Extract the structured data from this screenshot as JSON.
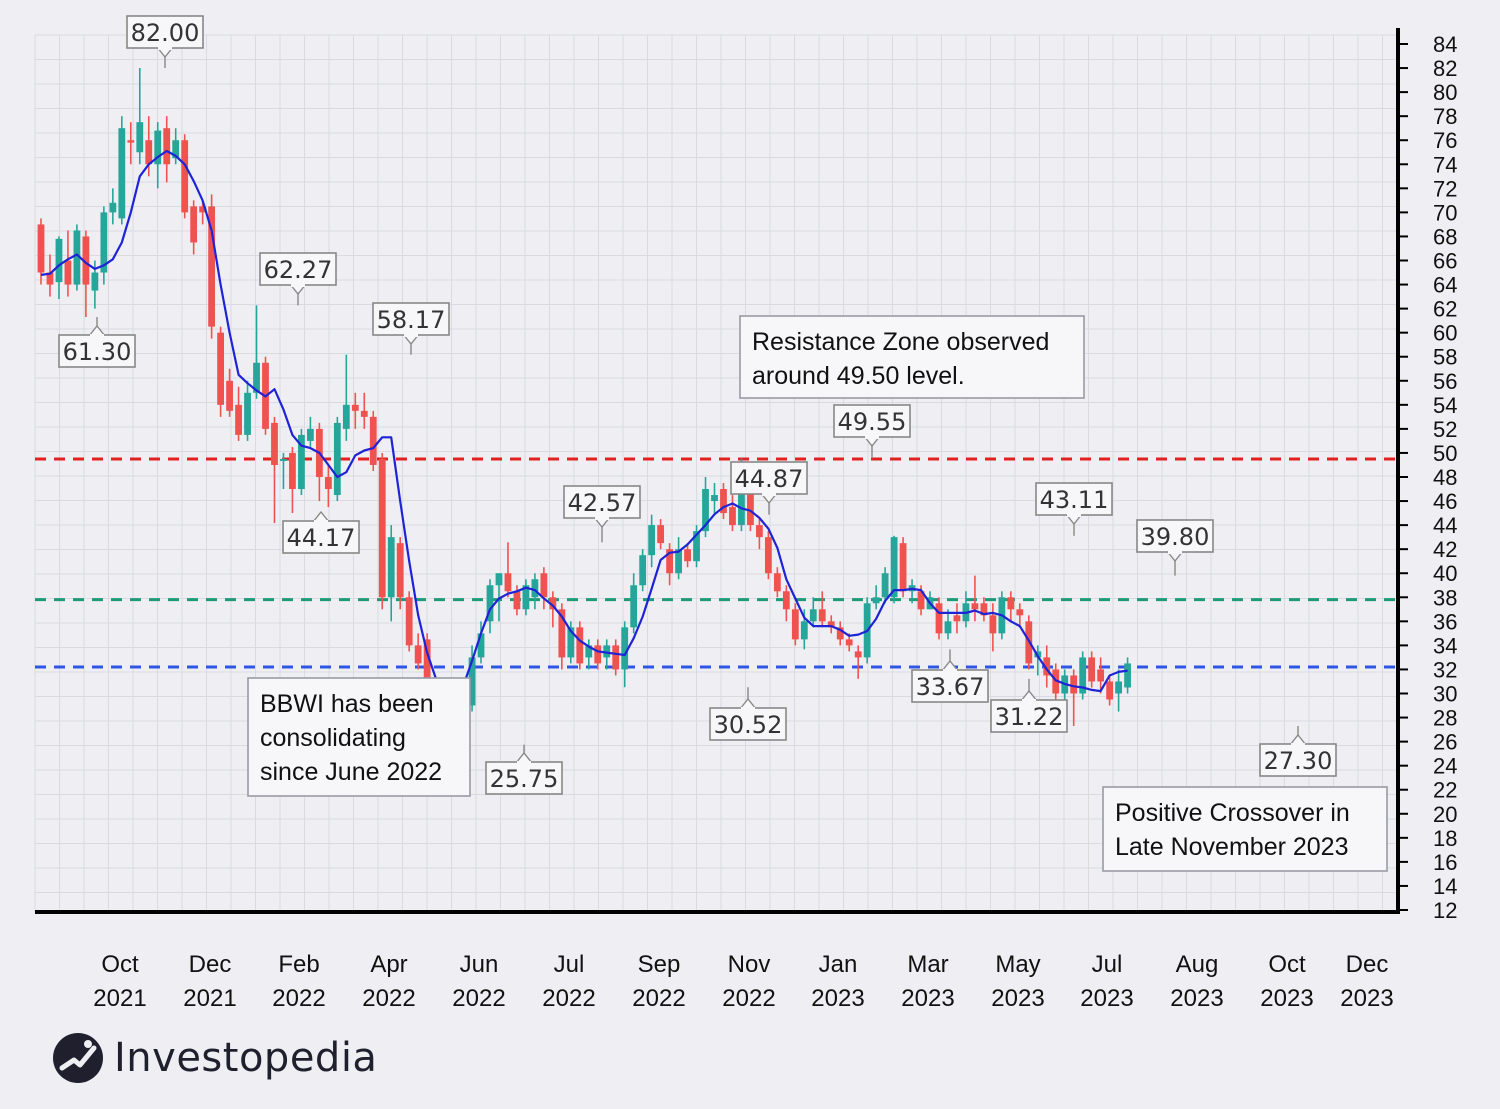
{
  "brand": {
    "name": "Investopedia"
  },
  "colors": {
    "bullish": "#26a69a",
    "bearish": "#ef5350",
    "moving_average": "#1f23d6",
    "resistance_line": "#e12020",
    "green_line": "#1e9a78",
    "blue_line": "#2f55e6",
    "background": "#efeff3",
    "grid": "#dadae3"
  },
  "chart_data": {
    "type": "candlestick",
    "ticker": "BBWI",
    "y_axis": {
      "position": "right",
      "ticks": [
        "12",
        "14",
        "16",
        "18",
        "20",
        "22",
        "24",
        "26",
        "28",
        "30",
        "32",
        "34",
        "36",
        "38",
        "40",
        "42",
        "44",
        "46",
        "48",
        "50",
        "52",
        "54",
        "56",
        "58",
        "60",
        "62",
        "64",
        "66",
        "68",
        "70",
        "72",
        "74",
        "76",
        "78",
        "80",
        "82",
        "84"
      ],
      "ylim": [
        12,
        84
      ]
    },
    "x_axis": {
      "ticks": [
        {
          "month": "Oct",
          "year": "2021"
        },
        {
          "month": "Dec",
          "year": "2021"
        },
        {
          "month": "Feb",
          "year": "2022"
        },
        {
          "month": "Apr",
          "year": "2022"
        },
        {
          "month": "Jun",
          "year": "2022"
        },
        {
          "month": "Jul",
          "year": "2022"
        },
        {
          "month": "Sep",
          "year": "2022"
        },
        {
          "month": "Nov",
          "year": "2022"
        },
        {
          "month": "Jan",
          "year": "2023"
        },
        {
          "month": "Mar",
          "year": "2023"
        },
        {
          "month": "May",
          "year": "2023"
        },
        {
          "month": "Jul",
          "year": "2023"
        },
        {
          "month": "Aug",
          "year": "2023"
        },
        {
          "month": "Oct",
          "year": "2023"
        },
        {
          "month": "Dec",
          "year": "2023"
        }
      ]
    },
    "grid": true,
    "horizontal_lines": [
      {
        "y": 49.5,
        "style": "dashed",
        "color": "red"
      },
      {
        "y": 37.8,
        "style": "dashed",
        "color": "green"
      },
      {
        "y": 32.2,
        "style": "dashed",
        "color": "blue"
      }
    ],
    "price_labels": [
      {
        "text": "82.00",
        "value": 82.0,
        "pos": "above"
      },
      {
        "text": "61.30",
        "value": 61.3,
        "pos": "below"
      },
      {
        "text": "62.27",
        "value": 62.27,
        "pos": "above"
      },
      {
        "text": "58.17",
        "value": 58.17,
        "pos": "above"
      },
      {
        "text": "44.17",
        "value": 44.17,
        "pos": "below"
      },
      {
        "text": "42.57",
        "value": 42.57,
        "pos": "above"
      },
      {
        "text": "25.75",
        "value": 25.75,
        "pos": "below"
      },
      {
        "text": "44.87",
        "value": 44.87,
        "pos": "above"
      },
      {
        "text": "30.52",
        "value": 30.52,
        "pos": "below"
      },
      {
        "text": "49.55",
        "value": 49.55,
        "pos": "above"
      },
      {
        "text": "33.67",
        "value": 33.67,
        "pos": "below"
      },
      {
        "text": "31.22",
        "value": 31.22,
        "pos": "below"
      },
      {
        "text": "43.11",
        "value": 43.11,
        "pos": "above"
      },
      {
        "text": "39.80",
        "value": 39.8,
        "pos": "above"
      },
      {
        "text": "27.30",
        "value": 27.3,
        "pos": "below"
      }
    ],
    "annotations": [
      {
        "lines": [
          "Resistance Zone observed",
          "around 49.50 level."
        ]
      },
      {
        "lines": [
          "BBWI has been",
          "consolidating",
          "since June 2022"
        ]
      },
      {
        "lines": [
          "Positive Crossover in",
          "Late November 2023"
        ]
      }
    ],
    "candles": [
      [
        69.0,
        65.0,
        69.5,
        64.0
      ],
      [
        65.0,
        64.0,
        66.5,
        63.0
      ],
      [
        64.2,
        67.8,
        68.0,
        62.8
      ],
      [
        66.0,
        64.0,
        68.5,
        63.0
      ],
      [
        64.0,
        68.5,
        69.0,
        63.5
      ],
      [
        68.0,
        64.0,
        68.5,
        61.3
      ],
      [
        63.5,
        65.0,
        66.0,
        62.0
      ],
      [
        65.0,
        70.0,
        70.5,
        64.0
      ],
      [
        70.0,
        70.8,
        72.0,
        69.0
      ],
      [
        69.5,
        77.0,
        78.0,
        69.0
      ],
      [
        76.0,
        75.8,
        77.5,
        74.0
      ],
      [
        75.0,
        77.5,
        82.0,
        74.0
      ],
      [
        76.0,
        74.0,
        78.0,
        73.0
      ],
      [
        74.0,
        76.8,
        77.5,
        72.0
      ],
      [
        77.0,
        74.0,
        78.0,
        72.5
      ],
      [
        74.5,
        76.0,
        77.0,
        74.0
      ],
      [
        76.0,
        70.0,
        76.5,
        69.5
      ],
      [
        70.5,
        67.5,
        71.0,
        66.5
      ],
      [
        70.5,
        70.0,
        71.0,
        69.0
      ],
      [
        70.5,
        60.5,
        71.5,
        59.5
      ],
      [
        60.0,
        54.0,
        60.5,
        53.0
      ],
      [
        56.0,
        53.5,
        57.0,
        53.0
      ],
      [
        54.0,
        51.5,
        55.5,
        51.0
      ],
      [
        51.5,
        55.0,
        56.0,
        51.0
      ],
      [
        55.0,
        57.5,
        62.27,
        54.5
      ],
      [
        57.5,
        52.0,
        58.0,
        51.5
      ],
      [
        52.5,
        49.0,
        53.0,
        44.17
      ],
      [
        49.5,
        49.5,
        50.0,
        47.0
      ],
      [
        50.0,
        47.0,
        50.5,
        45.0
      ],
      [
        47.0,
        51.5,
        52.0,
        46.5
      ],
      [
        51.0,
        52.0,
        53.0,
        50.5
      ],
      [
        52.0,
        48.0,
        52.5,
        46.0
      ],
      [
        48.0,
        47.0,
        49.0,
        45.5
      ],
      [
        46.5,
        52.5,
        53.0,
        46.0
      ],
      [
        52.0,
        54.0,
        58.17,
        51.0
      ],
      [
        54.0,
        53.5,
        55.0,
        52.0
      ],
      [
        53.5,
        53.0,
        55.0,
        52.0
      ],
      [
        53.0,
        49.0,
        53.5,
        48.5
      ],
      [
        49.5,
        38.0,
        50.0,
        37.0
      ],
      [
        38.0,
        43.0,
        44.0,
        36.0
      ],
      [
        42.5,
        38.0,
        43.0,
        37.0
      ],
      [
        38.0,
        34.0,
        38.5,
        33.5
      ],
      [
        34.0,
        32.5,
        35.0,
        32.0
      ],
      [
        34.5,
        30.0,
        35.0,
        29.0
      ],
      [
        30.0,
        27.5,
        30.5,
        25.75
      ],
      [
        28.0,
        28.5,
        29.0,
        27.0
      ],
      [
        28.0,
        28.2,
        29.0,
        27.0
      ],
      [
        27.5,
        30.0,
        31.0,
        27.0
      ],
      [
        29.0,
        33.0,
        34.0,
        28.5
      ],
      [
        33.0,
        35.0,
        36.0,
        32.5
      ],
      [
        36.0,
        39.0,
        39.5,
        35.0
      ],
      [
        39.0,
        40.0,
        40.0,
        36.0
      ],
      [
        40.0,
        38.5,
        42.57,
        38.0
      ],
      [
        38.5,
        37.0,
        39.0,
        36.5
      ],
      [
        37.0,
        39.0,
        39.5,
        36.5
      ],
      [
        38.0,
        39.5,
        40.0,
        37.0
      ],
      [
        40.0,
        38.0,
        40.5,
        37.0
      ],
      [
        38.0,
        37.0,
        38.5,
        35.5
      ],
      [
        37.0,
        33.0,
        37.5,
        32.0
      ],
      [
        33.0,
        35.5,
        36.0,
        32.5
      ],
      [
        35.5,
        32.5,
        36.0,
        32.0
      ],
      [
        33.0,
        34.0,
        34.5,
        32.0
      ],
      [
        34.0,
        32.5,
        34.5,
        32.0
      ],
      [
        33.0,
        34.0,
        34.5,
        32.0
      ],
      [
        34.0,
        32.0,
        34.5,
        31.5
      ],
      [
        32.0,
        35.5,
        36.0,
        30.52
      ],
      [
        35.5,
        39.0,
        40.0,
        35.0
      ],
      [
        39.0,
        41.5,
        42.0,
        38.5
      ],
      [
        41.5,
        44.0,
        44.87,
        40.5
      ],
      [
        44.0,
        42.5,
        44.5,
        42.0
      ],
      [
        42.0,
        40.0,
        42.5,
        39.0
      ],
      [
        40.0,
        42.0,
        43.0,
        39.5
      ],
      [
        42.0,
        41.0,
        42.5,
        40.5
      ],
      [
        41.0,
        43.5,
        44.0,
        40.5
      ],
      [
        43.5,
        47.0,
        48.0,
        43.0
      ],
      [
        46.0,
        46.5,
        47.5,
        45.0
      ],
      [
        47.0,
        45.0,
        47.5,
        44.5
      ],
      [
        45.5,
        44.0,
        46.5,
        43.5
      ],
      [
        44.0,
        47.0,
        49.55,
        43.5
      ],
      [
        47.0,
        44.0,
        47.5,
        43.5
      ],
      [
        44.0,
        43.0,
        44.5,
        42.0
      ],
      [
        43.0,
        40.0,
        43.5,
        39.5
      ],
      [
        40.0,
        38.5,
        40.5,
        38.0
      ],
      [
        38.5,
        37.0,
        39.0,
        36.0
      ],
      [
        37.0,
        34.5,
        37.5,
        34.0
      ],
      [
        34.5,
        36.0,
        37.0,
        33.67
      ],
      [
        36.0,
        37.0,
        38.0,
        35.5
      ],
      [
        37.0,
        36.0,
        38.5,
        35.5
      ],
      [
        36.0,
        35.5,
        36.5,
        35.0
      ],
      [
        35.5,
        34.5,
        36.0,
        34.0
      ],
      [
        34.5,
        34.0,
        35.0,
        33.5
      ],
      [
        33.5,
        33.0,
        34.0,
        31.22
      ],
      [
        33.0,
        37.5,
        38.0,
        32.5
      ],
      [
        37.5,
        38.0,
        39.0,
        37.0
      ],
      [
        38.0,
        40.0,
        40.5,
        37.5
      ],
      [
        38.0,
        43.0,
        43.11,
        37.5
      ],
      [
        42.5,
        38.5,
        43.0,
        38.0
      ],
      [
        38.5,
        39.0,
        39.5,
        37.5
      ],
      [
        38.5,
        37.0,
        39.0,
        36.5
      ],
      [
        37.0,
        38.0,
        38.5,
        37.0
      ],
      [
        37.5,
        35.0,
        38.0,
        34.5
      ],
      [
        35.0,
        36.0,
        37.0,
        34.5
      ],
      [
        36.5,
        36.0,
        37.5,
        35.0
      ],
      [
        36.0,
        37.5,
        38.5,
        35.5
      ],
      [
        37.5,
        37.0,
        39.8,
        36.0
      ],
      [
        37.5,
        36.5,
        38.0,
        36.0
      ],
      [
        36.5,
        35.0,
        37.5,
        33.5
      ],
      [
        35.0,
        38.0,
        38.5,
        34.5
      ],
      [
        38.0,
        37.0,
        38.5,
        36.0
      ],
      [
        37.0,
        36.5,
        37.5,
        35.5
      ],
      [
        36.0,
        32.5,
        36.5,
        32.0
      ],
      [
        33.0,
        33.5,
        34.0,
        31.5
      ],
      [
        33.0,
        31.5,
        34.0,
        30.5
      ],
      [
        32.0,
        30.0,
        32.5,
        29.0
      ],
      [
        30.0,
        31.5,
        32.0,
        29.5
      ],
      [
        31.5,
        30.0,
        32.0,
        27.3
      ],
      [
        30.0,
        33.0,
        33.5,
        29.5
      ],
      [
        33.0,
        31.0,
        33.5,
        30.5
      ],
      [
        32.0,
        31.0,
        33.0,
        30.0
      ],
      [
        31.0,
        29.5,
        31.5,
        29.0
      ],
      [
        30.0,
        31.0,
        32.0,
        28.5
      ],
      [
        30.5,
        32.5,
        33.0,
        30.0
      ]
    ],
    "moving_average": [
      64.8,
      64.9,
      65.6,
      66.1,
      66.5,
      65.8,
      65.3,
      65.6,
      66.1,
      67.5,
      70.0,
      73.0,
      74.0,
      74.6,
      75.1,
      74.7,
      74.0,
      72.6,
      71.0,
      68.5,
      64.0,
      60.0,
      56.5,
      55.8,
      55.2,
      54.7,
      55.3,
      53.6,
      51.5,
      50.6,
      50.4,
      50.0,
      49.0,
      48.0,
      48.4,
      49.8,
      50.2,
      50.4,
      51.3,
      51.3,
      46.0,
      41.0,
      36.5,
      33.4,
      31.2,
      29.8,
      29.9,
      30.6,
      32.7,
      35.0,
      37.0,
      37.9,
      38.3,
      38.5,
      38.8,
      38.6,
      37.9,
      37.3,
      36.4,
      35.2,
      34.4,
      33.9,
      33.5,
      33.4,
      33.3,
      33.2,
      34.6,
      36.4,
      38.7,
      41.1,
      41.7,
      41.8,
      42.4,
      43.2,
      44.0,
      44.9,
      45.5,
      45.8,
      45.4,
      45.2,
      44.6,
      43.7,
      42.1,
      39.5,
      37.9,
      36.3,
      35.6,
      35.6,
      35.6,
      35.3,
      34.8,
      34.9,
      35.2,
      36.2,
      37.7,
      38.6,
      38.6,
      38.7,
      38.6,
      37.5,
      36.7,
      36.7,
      36.7,
      36.7,
      36.9,
      36.6,
      36.7,
      36.5,
      36.0,
      35.6,
      34.4,
      33.1,
      32.0,
      31.1,
      30.8,
      30.6,
      30.5,
      30.3,
      30.2,
      31.5,
      31.8,
      31.9
    ]
  }
}
